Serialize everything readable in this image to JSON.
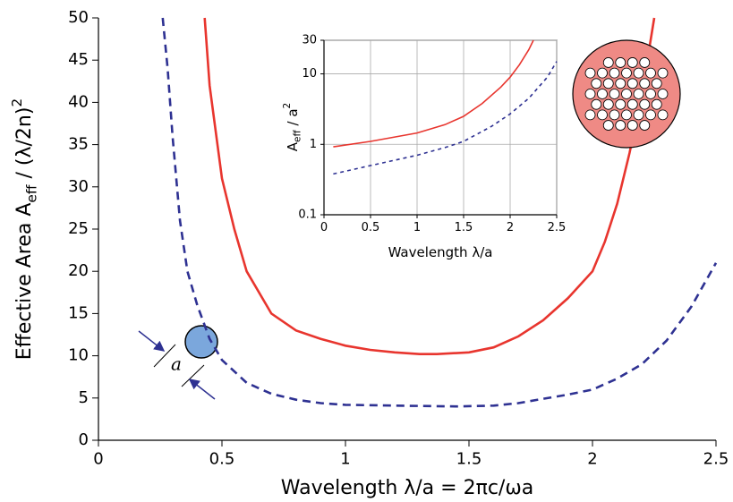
{
  "chart_data": [
    {
      "type": "line",
      "x_label": {
        "text": "Wavelength  λ/a = 2πc/ωa"
      },
      "y_label": {
        "text": "Effective Area  A",
        "sub": "eff",
        "rest": " / (λ/2n)",
        "sup": "2"
      },
      "annotation": "a",
      "xlim": [
        0,
        2.5
      ],
      "xticks": [
        0,
        0.5,
        1,
        1.5,
        2,
        2.5
      ],
      "ylim": [
        0,
        50
      ],
      "yticks": [
        0,
        5,
        10,
        15,
        20,
        25,
        30,
        35,
        40,
        45,
        50
      ],
      "grid": false,
      "log_y": false,
      "series": [
        {
          "color": "#e8352e",
          "line_style": "solid",
          "x": [
            0.43,
            0.45,
            0.5,
            0.55,
            0.6,
            0.7,
            0.8,
            0.9,
            1.0,
            1.1,
            1.2,
            1.3,
            1.37,
            1.5,
            1.6,
            1.7,
            1.8,
            1.9,
            2.0,
            2.05,
            2.1,
            2.15,
            2.2,
            2.25
          ],
          "values": [
            50,
            42,
            31,
            25,
            20,
            15,
            13,
            12,
            11.2,
            10.7,
            10.4,
            10.2,
            10.2,
            10.4,
            11,
            12.3,
            14.2,
            16.8,
            20,
            23.5,
            28,
            34,
            41,
            50
          ]
        },
        {
          "color": "#2e3192",
          "line_style": "dashed",
          "x": [
            0.26,
            0.28,
            0.3,
            0.33,
            0.36,
            0.4,
            0.45,
            0.5,
            0.6,
            0.7,
            0.8,
            0.9,
            1.0,
            1.2,
            1.45,
            1.6,
            1.7,
            1.8,
            1.9,
            2.0,
            2.1,
            2.2,
            2.3,
            2.4,
            2.5
          ],
          "values": [
            50,
            44,
            36,
            26,
            20,
            16,
            12,
            9.5,
            6.8,
            5.5,
            4.8,
            4.4,
            4.2,
            4.1,
            4,
            4.1,
            4.4,
            4.9,
            5.4,
            6.0,
            7.3,
            9,
            11.8,
            15.8,
            21
          ]
        }
      ]
    },
    {
      "type": "line",
      "x_label": {
        "text": "Wavelength  λ/a"
      },
      "y_label": {
        "text": "A",
        "sub": "eff",
        "rest": " / a",
        "sup": "2"
      },
      "xlim": [
        0,
        2.5
      ],
      "xticks": [
        0,
        0.5,
        1,
        1.5,
        2,
        2.5
      ],
      "ylim": [
        0.1,
        30
      ],
      "yticks": [
        0.1,
        1,
        10,
        30
      ],
      "grid": true,
      "log_y": true,
      "series": [
        {
          "color": "#e8352e",
          "line_style": "solid",
          "x": [
            0.1,
            0.5,
            1.0,
            1.3,
            1.5,
            1.7,
            1.9,
            2.0,
            2.1,
            2.2,
            2.25
          ],
          "values": [
            0.92,
            1.1,
            1.45,
            1.9,
            2.5,
            3.8,
            6.5,
            9,
            13.5,
            22,
            30
          ]
        },
        {
          "color": "#2e3192",
          "line_style": "dashed",
          "x": [
            0.1,
            0.5,
            1.0,
            1.3,
            1.5,
            1.8,
            2.0,
            2.2,
            2.4,
            2.5
          ],
          "values": [
            0.38,
            0.5,
            0.7,
            0.9,
            1.1,
            1.8,
            2.7,
            4.5,
            9,
            15
          ]
        }
      ]
    }
  ]
}
